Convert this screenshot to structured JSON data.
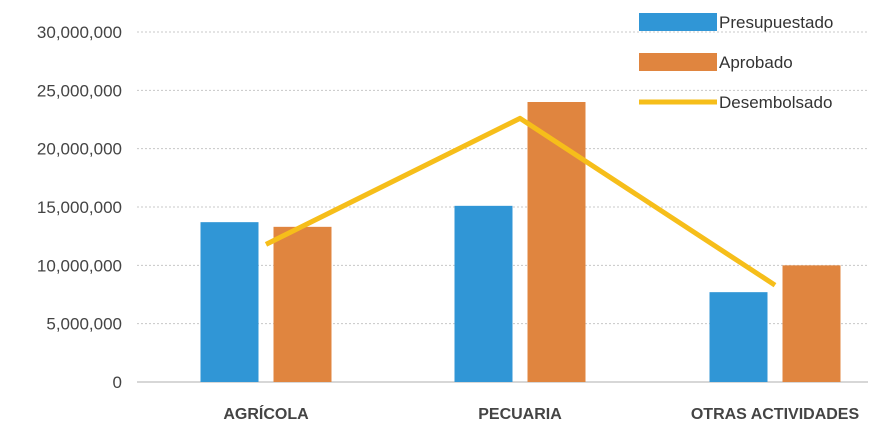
{
  "chart_data": {
    "type": "bar",
    "categories": [
      "AGRÍCOLA",
      "PECUARIA",
      "OTRAS ACTIVIDADES"
    ],
    "series": [
      {
        "name": "Presupuestado",
        "type": "bar",
        "color": "#3096d6",
        "values": [
          13700000,
          15100000,
          7700000
        ]
      },
      {
        "name": "Aprobado",
        "type": "bar",
        "color": "#e0853f",
        "values": [
          13300000,
          24000000,
          10000000
        ]
      },
      {
        "name": "Desembolsado",
        "type": "line",
        "color": "#f6be1a",
        "values": [
          11800000,
          22600000,
          8300000
        ]
      }
    ],
    "ylim": [
      0,
      30000000
    ],
    "yticks": [
      0,
      5000000,
      10000000,
      15000000,
      20000000,
      25000000,
      30000000
    ],
    "ytick_labels": [
      "0",
      "5,000,000",
      "10,000,000",
      "15,000,000",
      "20,000,000",
      "25,000,000",
      "30,000,000"
    ],
    "grid": true,
    "legend_position": "top-right"
  }
}
